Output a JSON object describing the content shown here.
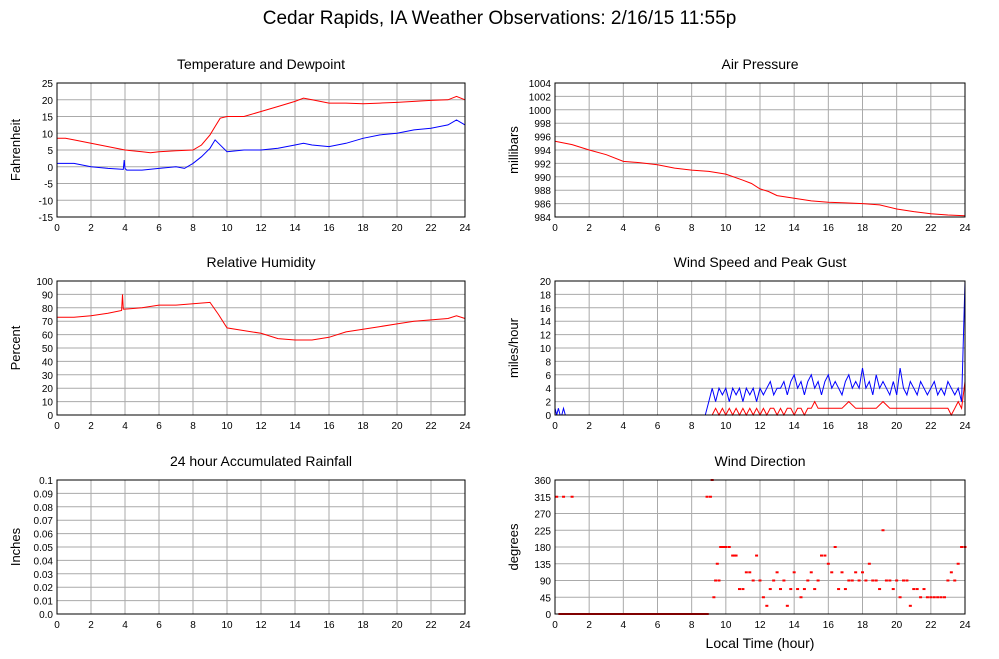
{
  "page": {
    "title": "Cedar Rapids, IA Weather Observations: 2/16/15 11:55p",
    "xlabel": "Local Time (hour)"
  },
  "colors": {
    "red": "#ff0000",
    "blue": "#0000ff",
    "grid": "#aaaaaa"
  },
  "chart_data": [
    {
      "id": "temp",
      "type": "line",
      "title": "Temperature and Dewpoint",
      "ylabel": "Fahrenheit",
      "xlim": [
        0,
        24
      ],
      "ylim": [
        -15,
        25
      ],
      "xticks": [
        0,
        2,
        4,
        6,
        8,
        10,
        12,
        14,
        16,
        18,
        20,
        22,
        24
      ],
      "yticks": [
        -15,
        -10,
        -5,
        0,
        5,
        10,
        15,
        20,
        25
      ],
      "ytick_labels": [
        "-15",
        "-10",
        "-5",
        "0",
        "5",
        "10",
        "15",
        "20",
        "25"
      ],
      "series": [
        {
          "color": "#ff0000",
          "x": [
            0,
            0.5,
            1,
            2,
            3,
            4,
            5,
            5.5,
            6,
            7,
            8,
            8.5,
            9,
            9.3,
            9.6,
            10,
            11,
            12,
            13,
            14,
            14.5,
            15,
            16,
            17,
            18,
            19,
            20,
            21,
            22,
            23,
            23.5,
            24
          ],
          "y": [
            8.5,
            8.5,
            8,
            7,
            6,
            5,
            4.5,
            4.2,
            4.5,
            4.8,
            5,
            6.5,
            9.5,
            12,
            14.5,
            15,
            15,
            16.5,
            18,
            19.5,
            20.5,
            20,
            19,
            19,
            18.8,
            19,
            19.2,
            19.5,
            19.8,
            20,
            21,
            20
          ]
        },
        {
          "color": "#0000ff",
          "x": [
            0,
            1,
            2,
            3,
            3.9,
            3.95,
            4,
            4.1,
            5,
            6,
            7,
            7.5,
            8,
            8.5,
            9,
            9.3,
            9.5,
            10,
            11,
            12,
            13,
            14,
            14.5,
            15,
            16,
            17,
            18,
            19,
            20,
            21,
            22,
            23,
            23.5,
            24
          ],
          "y": [
            1,
            1,
            0,
            -0.5,
            -0.8,
            2,
            -0.5,
            -1,
            -1,
            -0.5,
            0,
            -0.5,
            1,
            3,
            5.5,
            8,
            7,
            4.5,
            5,
            5,
            5.5,
            6.5,
            7,
            6.5,
            6,
            7,
            8.5,
            9.5,
            10,
            11,
            11.5,
            12.5,
            14,
            12.5
          ]
        }
      ]
    },
    {
      "id": "pressure",
      "type": "line",
      "title": "Air Pressure",
      "ylabel": "millibars",
      "xlim": [
        0,
        24
      ],
      "ylim": [
        984,
        1004
      ],
      "xticks": [
        0,
        2,
        4,
        6,
        8,
        10,
        12,
        14,
        16,
        18,
        20,
        22,
        24
      ],
      "yticks": [
        984,
        986,
        988,
        990,
        992,
        994,
        996,
        998,
        1000,
        1002,
        1004
      ],
      "ytick_labels": [
        "984",
        "986",
        "988",
        "990",
        "992",
        "994",
        "996",
        "998",
        "1000",
        "1002",
        "1004"
      ],
      "series": [
        {
          "color": "#ff0000",
          "x": [
            0,
            1,
            2,
            3,
            4,
            5,
            6,
            7,
            8,
            9,
            10,
            11,
            11.5,
            12,
            12.5,
            13,
            14,
            15,
            16,
            17,
            18,
            19,
            20,
            21,
            22,
            23,
            24
          ],
          "y": [
            995.3,
            994.8,
            994,
            993.3,
            992.3,
            992.1,
            991.8,
            991.3,
            991,
            990.8,
            990.4,
            989.5,
            989,
            988.2,
            987.8,
            987.2,
            986.8,
            986.4,
            986.2,
            986.1,
            986,
            985.8,
            985.2,
            984.8,
            984.5,
            984.3,
            984.2
          ]
        }
      ]
    },
    {
      "id": "humidity",
      "type": "line",
      "title": "Relative Humidity",
      "ylabel": "Percent",
      "xlim": [
        0,
        24
      ],
      "ylim": [
        0,
        100
      ],
      "xticks": [
        0,
        2,
        4,
        6,
        8,
        10,
        12,
        14,
        16,
        18,
        20,
        22,
        24
      ],
      "yticks": [
        0,
        10,
        20,
        30,
        40,
        50,
        60,
        70,
        80,
        90,
        100
      ],
      "ytick_labels": [
        "0",
        "10",
        "20",
        "30",
        "40",
        "50",
        "60",
        "70",
        "80",
        "90",
        "100"
      ],
      "series": [
        {
          "color": "#ff0000",
          "x": [
            0,
            1,
            2,
            3,
            3.8,
            3.85,
            3.9,
            4,
            5,
            6,
            7,
            8,
            9,
            9.5,
            10,
            11,
            12,
            13,
            14,
            15,
            16,
            17,
            18,
            19,
            20,
            21,
            22,
            23,
            23.5,
            24
          ],
          "y": [
            73,
            73,
            74,
            76,
            78,
            90,
            79,
            79,
            80,
            82,
            82,
            83,
            84,
            75,
            65,
            63,
            61,
            57,
            56,
            56,
            58,
            62,
            64,
            66,
            68,
            70,
            71,
            72,
            74,
            72
          ]
        }
      ]
    },
    {
      "id": "wind",
      "type": "line",
      "title": "Wind Speed and Peak Gust",
      "ylabel": "miles/hour",
      "xlim": [
        0,
        24
      ],
      "ylim": [
        0,
        20
      ],
      "xticks": [
        0,
        2,
        4,
        6,
        8,
        10,
        12,
        14,
        16,
        18,
        20,
        22,
        24
      ],
      "yticks": [
        0,
        2,
        4,
        6,
        8,
        10,
        12,
        14,
        16,
        18,
        20
      ],
      "ytick_labels": [
        "0",
        "2",
        "4",
        "6",
        "8",
        "10",
        "12",
        "14",
        "16",
        "18",
        "20"
      ],
      "series": [
        {
          "color": "#0000ff",
          "x": [
            0,
            0.1,
            0.2,
            0.3,
            0.4,
            0.5,
            0.6,
            0.7,
            0.8,
            0.9,
            1.0,
            1.1,
            8.8,
            9.0,
            9.2,
            9.4,
            9.6,
            9.8,
            10.0,
            10.2,
            10.4,
            10.6,
            10.8,
            11.0,
            11.2,
            11.4,
            11.6,
            11.8,
            12.0,
            12.2,
            12.4,
            12.6,
            12.8,
            13.0,
            13.2,
            13.4,
            13.6,
            13.8,
            14.0,
            14.2,
            14.4,
            14.6,
            14.8,
            15.0,
            15.2,
            15.4,
            15.6,
            15.8,
            16.0,
            16.2,
            16.4,
            16.6,
            16.8,
            17.0,
            17.2,
            17.4,
            17.6,
            17.8,
            18.0,
            18.2,
            18.4,
            18.6,
            18.8,
            19.0,
            19.2,
            19.4,
            19.6,
            19.8,
            20.0,
            20.2,
            20.4,
            20.6,
            20.8,
            21.0,
            21.2,
            21.4,
            21.6,
            21.8,
            22.0,
            22.2,
            22.4,
            22.6,
            22.8,
            23.0,
            23.2,
            23.4,
            23.6,
            23.8,
            24.0
          ],
          "y": [
            1,
            0,
            1,
            0,
            0,
            1,
            0,
            0,
            0,
            0,
            0,
            0,
            0,
            2,
            4,
            2,
            4,
            3,
            4,
            2,
            4,
            3,
            4,
            2,
            4,
            3,
            4,
            2,
            4,
            3,
            4,
            5,
            3,
            4,
            4,
            5,
            3,
            5,
            6,
            4,
            5,
            3,
            5,
            6,
            4,
            5,
            3,
            5,
            6,
            4,
            5,
            4,
            3,
            5,
            6,
            4,
            5,
            4,
            7,
            4,
            5,
            3,
            6,
            4,
            5,
            4,
            3,
            5,
            3,
            7,
            4,
            3,
            5,
            4,
            3,
            5,
            4,
            3,
            4,
            5,
            3,
            4,
            3,
            5,
            4,
            3,
            4,
            2,
            20
          ]
        },
        {
          "color": "#ff0000",
          "x": [
            0,
            9.0,
            9.2,
            9.4,
            9.6,
            9.8,
            10.0,
            10.2,
            10.4,
            10.6,
            10.8,
            11.0,
            11.2,
            11.4,
            11.6,
            11.8,
            12.0,
            12.2,
            12.4,
            12.6,
            12.8,
            13.0,
            13.2,
            13.4,
            13.6,
            13.8,
            14.0,
            14.2,
            14.4,
            14.6,
            14.8,
            15.0,
            15.2,
            15.4,
            15.6,
            15.8,
            16.0,
            16.4,
            16.8,
            17.2,
            17.6,
            18.0,
            18.4,
            18.8,
            19.2,
            19.6,
            20.0,
            20.4,
            20.8,
            21.2,
            21.6,
            22.0,
            22.4,
            22.8,
            23.0,
            23.2,
            23.4,
            23.6,
            23.8,
            24.0
          ],
          "y": [
            0,
            0,
            0,
            1,
            0,
            1,
            0,
            1,
            0,
            1,
            0,
            1,
            0,
            1,
            0,
            1,
            0,
            1,
            0,
            1,
            1,
            0,
            1,
            0,
            1,
            1,
            0,
            1,
            1,
            0,
            1,
            1,
            2,
            1,
            1,
            1,
            1,
            1,
            1,
            2,
            1,
            1,
            1,
            1,
            2,
            1,
            1,
            1,
            1,
            1,
            1,
            1,
            1,
            1,
            1,
            0,
            1,
            2,
            1,
            5
          ]
        }
      ]
    },
    {
      "id": "rain",
      "type": "line",
      "title": "24 hour Accumulated Rainfall",
      "ylabel": "Inches",
      "xlim": [
        0,
        24
      ],
      "ylim": [
        0,
        0.1
      ],
      "xticks": [
        0,
        2,
        4,
        6,
        8,
        10,
        12,
        14,
        16,
        18,
        20,
        22,
        24
      ],
      "yticks": [
        0,
        0.01,
        0.02,
        0.03,
        0.04,
        0.05,
        0.06,
        0.07,
        0.08,
        0.09,
        0.1
      ],
      "ytick_labels": [
        "0.0",
        "0.01",
        "0.02",
        "0.03",
        "0.04",
        "0.05",
        "0.06",
        "0.07",
        "0.08",
        "0.09",
        "0.1"
      ],
      "series": [
        {
          "color": "#ff0000",
          "x": [
            0,
            24
          ],
          "y": [
            0,
            0
          ]
        }
      ]
    },
    {
      "id": "direction",
      "type": "scatter",
      "title": "Wind Direction",
      "ylabel": "degrees",
      "xlim": [
        0,
        24
      ],
      "ylim": [
        0,
        360
      ],
      "xticks": [
        0,
        2,
        4,
        6,
        8,
        10,
        12,
        14,
        16,
        18,
        20,
        22,
        24
      ],
      "yticks": [
        0,
        45,
        90,
        135,
        180,
        225,
        270,
        315,
        360
      ],
      "ytick_labels": [
        "0",
        "45",
        "90",
        "135",
        "180",
        "225",
        "270",
        "315",
        "360"
      ],
      "series": [
        {
          "color": "#ff0000",
          "x": [
            0.1,
            0.3,
            0.5,
            0.8,
            1.0,
            8.9,
            9.1,
            9.2,
            9.3,
            9.4,
            9.5,
            9.6,
            9.7,
            9.8,
            9.9,
            10.0,
            10.2,
            10.4,
            10.5,
            10.6,
            10.8,
            11.0,
            11.2,
            11.4,
            11.6,
            11.8,
            12.0,
            12.2,
            12.4,
            12.6,
            12.8,
            13.0,
            13.2,
            13.4,
            13.6,
            13.8,
            14.0,
            14.2,
            14.4,
            14.6,
            14.8,
            15.0,
            15.2,
            15.4,
            15.6,
            15.8,
            16.0,
            16.2,
            16.4,
            16.6,
            16.8,
            17.0,
            17.2,
            17.4,
            17.6,
            17.8,
            18.0,
            18.2,
            18.4,
            18.6,
            18.8,
            19.0,
            19.2,
            19.4,
            19.6,
            19.8,
            20.0,
            20.2,
            20.4,
            20.6,
            20.8,
            21.0,
            21.2,
            21.4,
            21.6,
            21.8,
            22.0,
            22.2,
            22.4,
            22.6,
            22.8,
            23.0,
            23.2,
            23.4,
            23.6,
            23.8,
            24.0
          ],
          "y": [
            315,
            0,
            315,
            0,
            315,
            315,
            315,
            360,
            45,
            90,
            135,
            90,
            180,
            180,
            180,
            180,
            180,
            157,
            157,
            157,
            67,
            67,
            112,
            112,
            90,
            157,
            90,
            45,
            22,
            67,
            90,
            112,
            67,
            90,
            22,
            67,
            112,
            67,
            45,
            67,
            90,
            112,
            67,
            90,
            157,
            157,
            135,
            112,
            180,
            67,
            112,
            67,
            90,
            90,
            112,
            90,
            112,
            90,
            135,
            90,
            90,
            67,
            225,
            90,
            90,
            67,
            90,
            45,
            90,
            90,
            22,
            67,
            67,
            45,
            67,
            45,
            45,
            45,
            45,
            45,
            45,
            90,
            112,
            90,
            135,
            180,
            180
          ]
        }
      ]
    }
  ]
}
